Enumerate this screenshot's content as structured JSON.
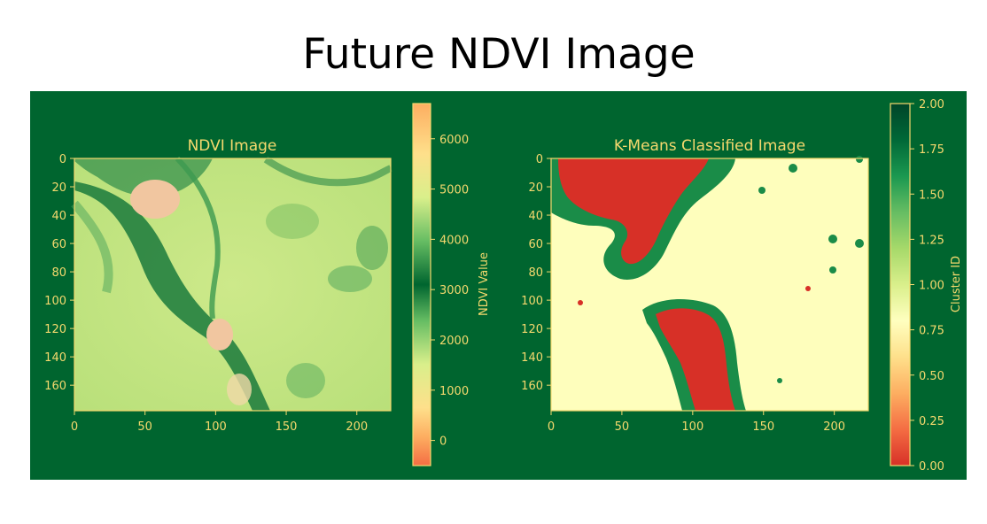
{
  "figure_title": "Future NDVI Image",
  "chart_data": [
    {
      "type": "heatmap",
      "title": "NDVI Image",
      "xlabel": "",
      "ylabel": "",
      "xlim": [
        0,
        224
      ],
      "ylim": [
        0,
        178
      ],
      "x_ticks": [
        0,
        50,
        100,
        150,
        200
      ],
      "y_ticks": [
        0,
        20,
        40,
        60,
        80,
        100,
        120,
        140,
        160
      ],
      "colormap": "RdYlGn",
      "colorbar": {
        "label": "NDVI Value",
        "range": [
          -500,
          6700
        ],
        "ticks": [
          0,
          1000,
          2000,
          3000,
          4000,
          5000,
          6000
        ],
        "tick_labels": [
          "0",
          "1000",
          "2000",
          "3000",
          "4000",
          "5000",
          "6000"
        ]
      }
    },
    {
      "type": "heatmap",
      "title": "K-Means Classified Image",
      "xlabel": "",
      "ylabel": "",
      "xlim": [
        0,
        224
      ],
      "ylim": [
        0,
        178
      ],
      "x_ticks": [
        0,
        50,
        100,
        150,
        200
      ],
      "y_ticks": [
        0,
        20,
        40,
        60,
        80,
        100,
        120,
        140,
        160
      ],
      "colormap": "RdYlGn",
      "classes": [
        0,
        1,
        2
      ],
      "colorbar": {
        "label": "Cluster ID",
        "range": [
          0,
          2
        ],
        "ticks": [
          0,
          0.25,
          0.5,
          0.75,
          1.0,
          1.25,
          1.5,
          1.75,
          2.0
        ],
        "tick_labels": [
          "0.00",
          "0.25",
          "0.50",
          "0.75",
          "1.00",
          "1.25",
          "1.50",
          "1.75",
          "2.00"
        ]
      }
    }
  ],
  "colors": {
    "background": "#00652f",
    "text": "#f5d96e",
    "class_0": "#d73027",
    "class_1": "#fefebc",
    "class_2": "#1a8c48"
  }
}
